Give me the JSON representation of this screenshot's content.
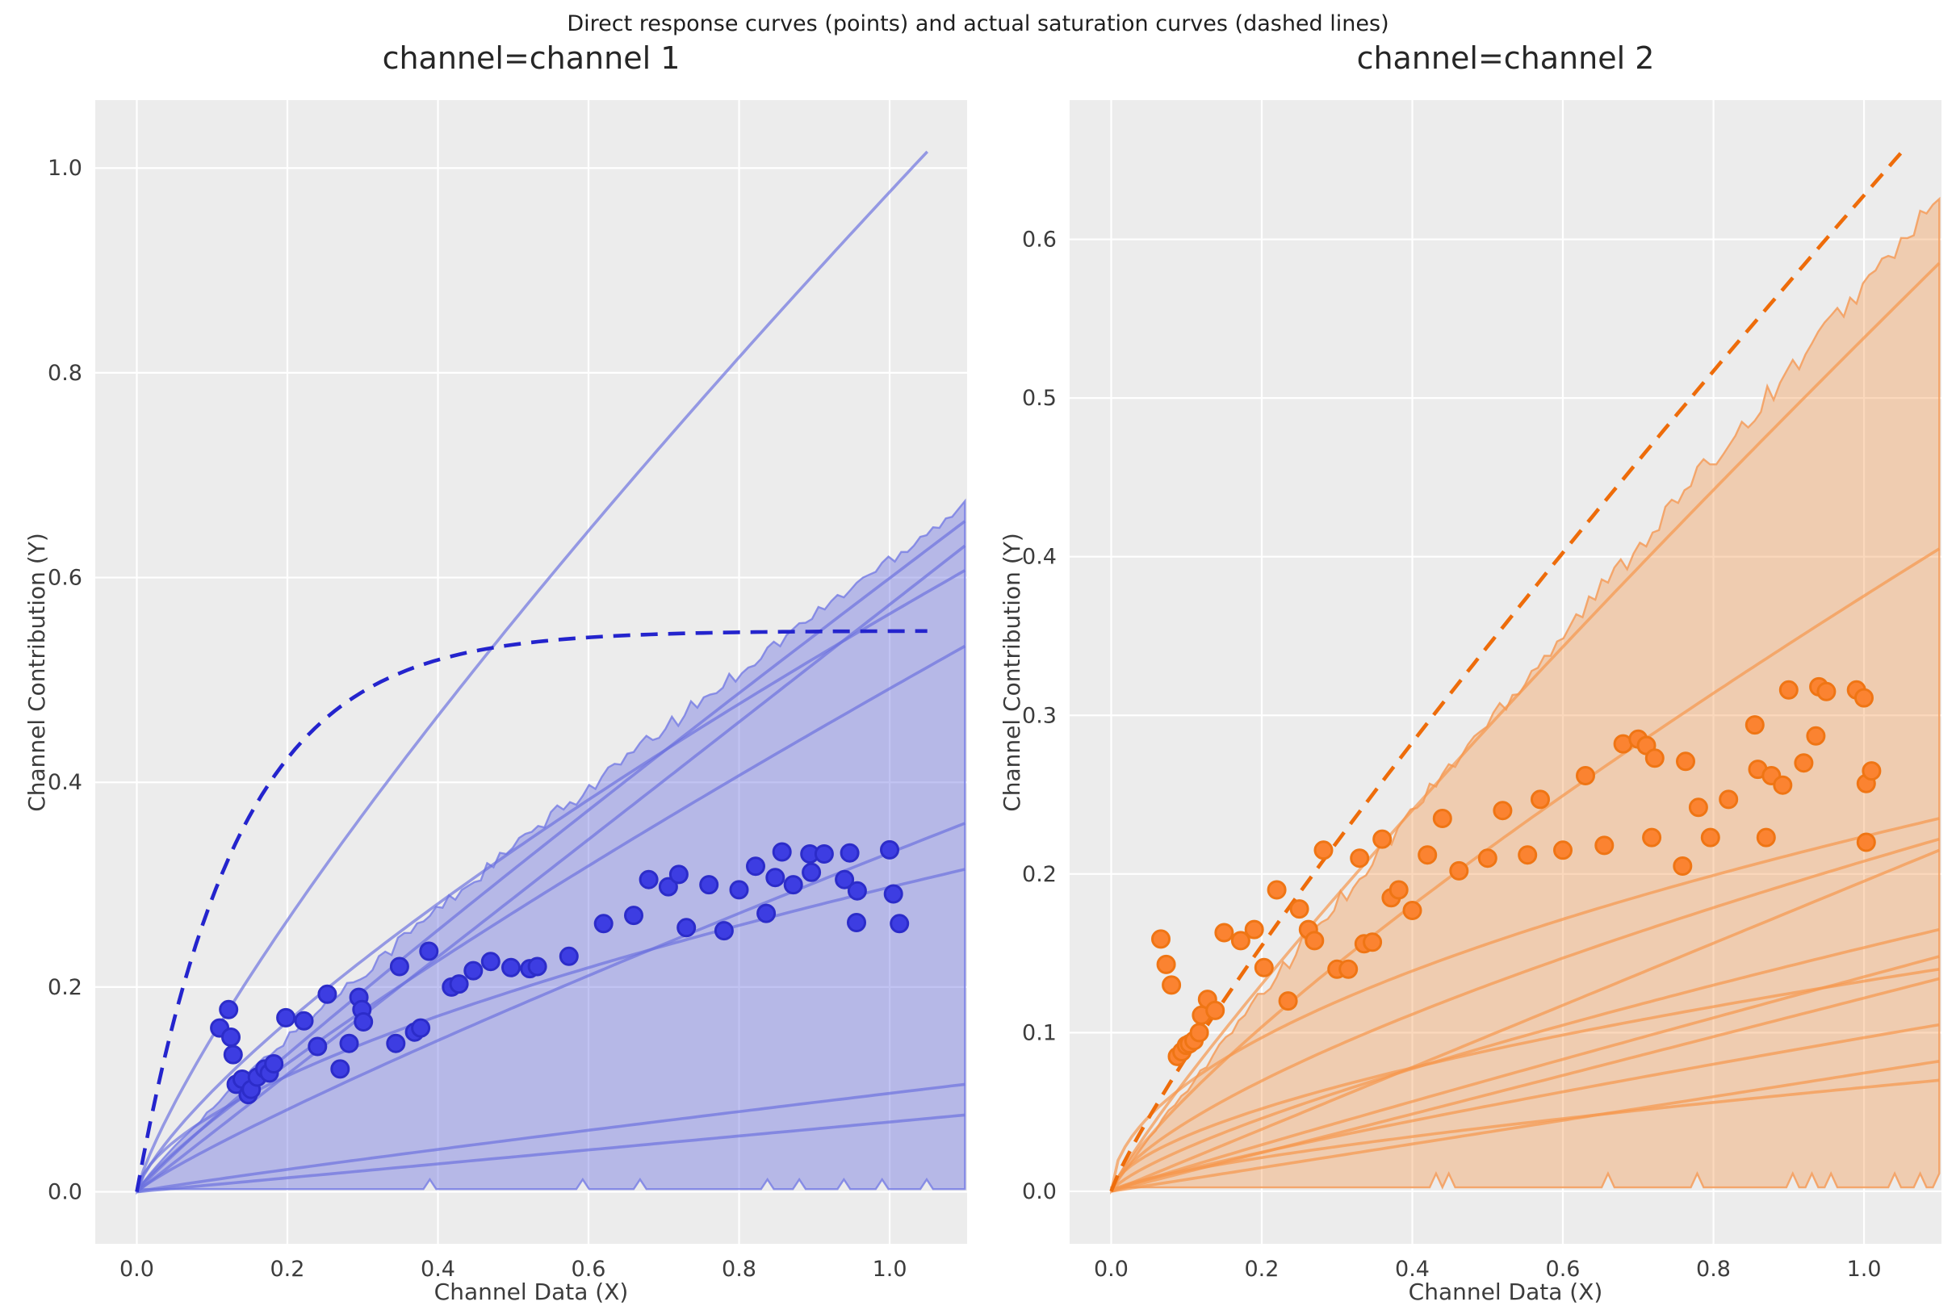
{
  "figure_title": "Direct response curves (points) and actual saturation curves (dashed lines)",
  "style": {
    "plot_bg": "#ececec",
    "grid_color": "#ffffff",
    "tick_color": "#3c3c3c",
    "title_color": "#262626"
  },
  "chart_data": [
    {
      "type": "scatter",
      "title": "channel=channel 1",
      "xlabel": "Channel Data (X)",
      "ylabel": "Channel Contribution (Y)",
      "legend": "none",
      "grid": true,
      "xlim": [
        -0.0552,
        1.1029
      ],
      "ylim": [
        -0.0508,
        1.0664
      ],
      "xticks": {
        "values": [
          0.0,
          0.2,
          0.4,
          0.6,
          0.8,
          1.0
        ],
        "labels": [
          "0.0",
          "0.2",
          "0.4",
          "0.6",
          "0.8",
          "1.0"
        ]
      },
      "yticks": {
        "values": [
          0.0,
          0.2,
          0.4,
          0.6,
          0.8,
          1.0
        ],
        "labels": [
          "0.0",
          "0.2",
          "0.4",
          "0.6",
          "0.8",
          "1.0"
        ]
      },
      "colors": {
        "dashed": "#2424cd",
        "scatter_fill": "#3d3de2",
        "scatter_edge": "#2c2cc9",
        "line": "rgba(106,112,222,0.68)",
        "band_fill": "rgba(108,113,224,0.42)",
        "band_edge": "rgba(122,128,228,0.85)"
      },
      "saturation_dashed": {
        "model": "exp_saturation",
        "y_max": 0.548,
        "k": 7.4,
        "x_end": 1.05
      },
      "extra_line": {
        "model": "power",
        "y_end": 1.016,
        "p": 0.81,
        "x_end": 1.05
      },
      "band": {
        "model": "power",
        "y_end": 0.672,
        "p": 0.88,
        "x_end": 1.1
      },
      "sample_curves": [
        {
          "y_end": 0.655,
          "p": 0.93
        },
        {
          "y_end": 0.631,
          "p": 1.0
        },
        {
          "y_end": 0.607,
          "p": 0.76
        },
        {
          "y_end": 0.533,
          "p": 0.85
        },
        {
          "y_end": 0.36,
          "p": 0.88
        },
        {
          "y_end": 0.315,
          "p": 0.6
        },
        {
          "y_end": 0.105,
          "p": 0.92
        },
        {
          "y_end": 0.075,
          "p": 1.0
        }
      ],
      "points": [
        [
          0.11,
          0.16
        ],
        [
          0.122,
          0.178
        ],
        [
          0.125,
          0.151
        ],
        [
          0.128,
          0.134
        ],
        [
          0.132,
          0.105
        ],
        [
          0.14,
          0.11
        ],
        [
          0.148,
          0.095
        ],
        [
          0.152,
          0.1
        ],
        [
          0.16,
          0.112
        ],
        [
          0.17,
          0.12
        ],
        [
          0.176,
          0.116
        ],
        [
          0.182,
          0.125
        ],
        [
          0.198,
          0.17
        ],
        [
          0.222,
          0.167
        ],
        [
          0.24,
          0.142
        ],
        [
          0.253,
          0.193
        ],
        [
          0.27,
          0.12
        ],
        [
          0.282,
          0.145
        ],
        [
          0.295,
          0.19
        ],
        [
          0.299,
          0.178
        ],
        [
          0.301,
          0.166
        ],
        [
          0.344,
          0.145
        ],
        [
          0.349,
          0.22
        ],
        [
          0.369,
          0.156
        ],
        [
          0.377,
          0.16
        ],
        [
          0.388,
          0.235
        ],
        [
          0.418,
          0.2
        ],
        [
          0.428,
          0.203
        ],
        [
          0.447,
          0.216
        ],
        [
          0.47,
          0.225
        ],
        [
          0.497,
          0.219
        ],
        [
          0.522,
          0.218
        ],
        [
          0.532,
          0.22
        ],
        [
          0.574,
          0.23
        ],
        [
          0.62,
          0.262
        ],
        [
          0.66,
          0.27
        ],
        [
          0.68,
          0.305
        ],
        [
          0.706,
          0.298
        ],
        [
          0.72,
          0.31
        ],
        [
          0.73,
          0.258
        ],
        [
          0.76,
          0.3
        ],
        [
          0.78,
          0.255
        ],
        [
          0.8,
          0.295
        ],
        [
          0.822,
          0.318
        ],
        [
          0.836,
          0.272
        ],
        [
          0.848,
          0.307
        ],
        [
          0.857,
          0.332
        ],
        [
          0.872,
          0.3
        ],
        [
          0.894,
          0.33
        ],
        [
          0.896,
          0.312
        ],
        [
          0.913,
          0.33
        ],
        [
          0.94,
          0.305
        ],
        [
          0.947,
          0.331
        ],
        [
          0.956,
          0.263
        ],
        [
          0.957,
          0.294
        ],
        [
          1.0,
          0.334
        ],
        [
          1.005,
          0.291
        ],
        [
          1.013,
          0.262
        ]
      ]
    },
    {
      "type": "scatter",
      "title": "channel=channel 2",
      "xlabel": "Channel Data (X)",
      "ylabel": "Channel Contribution (Y)",
      "legend": "none",
      "grid": true,
      "xlim": [
        -0.0552,
        1.1029
      ],
      "ylim": [
        -0.0331,
        0.6878
      ],
      "xticks": {
        "values": [
          0.0,
          0.2,
          0.4,
          0.6,
          0.8,
          1.0
        ],
        "labels": [
          "0.0",
          "0.2",
          "0.4",
          "0.6",
          "0.8",
          "1.0"
        ]
      },
      "yticks": {
        "values": [
          0.0,
          0.1,
          0.2,
          0.3,
          0.4,
          0.5,
          0.6
        ],
        "labels": [
          "0.0",
          "0.1",
          "0.2",
          "0.3",
          "0.4",
          "0.5",
          "0.6"
        ]
      },
      "colors": {
        "dashed": "#ee6c0a",
        "scatter_fill": "#fb8331",
        "scatter_edge": "#ef7514",
        "line": "rgba(246,151,77,0.70)",
        "band_fill": "rgba(246,157,88,0.40)",
        "band_edge": "rgba(244,160,96,0.90)"
      },
      "saturation_dashed": {
        "model": "power",
        "y_end": 0.655,
        "p": 0.87,
        "x_end": 1.05
      },
      "extra_line": null,
      "band": {
        "model": "power",
        "y_end": 0.625,
        "p": 0.95,
        "x_end": 1.1
      },
      "sample_curves": [
        {
          "y_end": 0.585,
          "p": 0.88
        },
        {
          "y_end": 0.405,
          "p": 0.8
        },
        {
          "y_end": 0.235,
          "p": 0.52
        },
        {
          "y_end": 0.222,
          "p": 0.68
        },
        {
          "y_end": 0.215,
          "p": 1.0
        },
        {
          "y_end": 0.165,
          "p": 0.75
        },
        {
          "y_end": 0.148,
          "p": 0.95
        },
        {
          "y_end": 0.14,
          "p": 0.58
        },
        {
          "y_end": 0.134,
          "p": 1.0
        },
        {
          "y_end": 0.105,
          "p": 0.85
        },
        {
          "y_end": 0.082,
          "p": 1.0
        },
        {
          "y_end": 0.07,
          "p": 0.7
        }
      ],
      "points": [
        [
          0.066,
          0.159
        ],
        [
          0.073,
          0.143
        ],
        [
          0.08,
          0.13
        ],
        [
          0.088,
          0.085
        ],
        [
          0.094,
          0.088
        ],
        [
          0.1,
          0.092
        ],
        [
          0.104,
          0.093
        ],
        [
          0.11,
          0.095
        ],
        [
          0.117,
          0.1
        ],
        [
          0.12,
          0.111
        ],
        [
          0.128,
          0.121
        ],
        [
          0.138,
          0.114
        ],
        [
          0.15,
          0.163
        ],
        [
          0.172,
          0.158
        ],
        [
          0.19,
          0.165
        ],
        [
          0.203,
          0.141
        ],
        [
          0.22,
          0.19
        ],
        [
          0.235,
          0.12
        ],
        [
          0.25,
          0.178
        ],
        [
          0.262,
          0.165
        ],
        [
          0.27,
          0.158
        ],
        [
          0.282,
          0.215
        ],
        [
          0.3,
          0.14
        ],
        [
          0.315,
          0.14
        ],
        [
          0.33,
          0.21
        ],
        [
          0.336,
          0.156
        ],
        [
          0.347,
          0.157
        ],
        [
          0.36,
          0.222
        ],
        [
          0.372,
          0.185
        ],
        [
          0.382,
          0.19
        ],
        [
          0.4,
          0.177
        ],
        [
          0.42,
          0.212
        ],
        [
          0.44,
          0.235
        ],
        [
          0.462,
          0.202
        ],
        [
          0.5,
          0.21
        ],
        [
          0.52,
          0.24
        ],
        [
          0.553,
          0.212
        ],
        [
          0.57,
          0.247
        ],
        [
          0.6,
          0.215
        ],
        [
          0.63,
          0.262
        ],
        [
          0.655,
          0.218
        ],
        [
          0.68,
          0.282
        ],
        [
          0.7,
          0.285
        ],
        [
          0.711,
          0.281
        ],
        [
          0.718,
          0.223
        ],
        [
          0.722,
          0.273
        ],
        [
          0.759,
          0.205
        ],
        [
          0.763,
          0.271
        ],
        [
          0.78,
          0.242
        ],
        [
          0.796,
          0.223
        ],
        [
          0.82,
          0.247
        ],
        [
          0.855,
          0.294
        ],
        [
          0.859,
          0.266
        ],
        [
          0.87,
          0.223
        ],
        [
          0.877,
          0.262
        ],
        [
          0.892,
          0.256
        ],
        [
          0.9,
          0.316
        ],
        [
          0.92,
          0.27
        ],
        [
          0.936,
          0.287
        ],
        [
          0.94,
          0.318
        ],
        [
          0.95,
          0.315
        ],
        [
          0.99,
          0.316
        ],
        [
          1.0,
          0.311
        ],
        [
          1.003,
          0.257
        ],
        [
          1.003,
          0.22
        ],
        [
          1.01,
          0.265
        ]
      ]
    }
  ]
}
